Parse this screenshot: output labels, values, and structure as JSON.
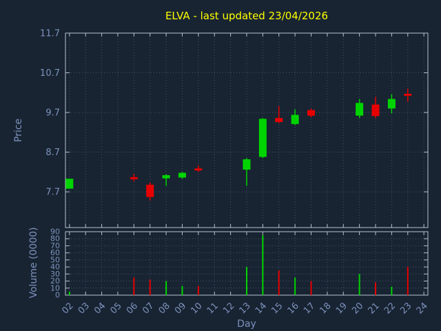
{
  "title": "ELVA - last updated 23/04/2026",
  "symbol": "ELVA",
  "last_updated": "23/04/2026",
  "axes": {
    "price_label": "Price",
    "volume_label": "Volume (0000)",
    "x_label": "Day",
    "price_ticks": [
      "7.7",
      "8.7",
      "9.7",
      "10.7",
      "11.7"
    ],
    "volume_ticks": [
      0,
      10,
      20,
      30,
      40,
      50,
      60,
      70,
      80,
      90
    ],
    "x_ticks": [
      "02",
      "03",
      "04",
      "05",
      "06",
      "07",
      "08",
      "09",
      "10",
      "11",
      "12",
      "13",
      "14",
      "15",
      "16",
      "17",
      "18",
      "19",
      "20",
      "21",
      "22",
      "23",
      "24"
    ]
  },
  "colors": {
    "background": "#182432",
    "title": "#ffff00",
    "text": "#7e93bd",
    "grid": "#45536a",
    "border": "#b9c3cf",
    "up": "#00d400",
    "down": "#e80000"
  },
  "chart_data": {
    "type": "candlestick",
    "title": "ELVA - last updated 23/04/2026",
    "xlabel": "Day",
    "ylabel": "Price",
    "ylabel2": "Volume (0000)",
    "grid": true,
    "legend": false,
    "x_range": [
      2,
      24
    ],
    "price_range": [
      6.8,
      11.7
    ],
    "volume_range": [
      0,
      90
    ],
    "candles": [
      {
        "day": 2,
        "open": 7.78,
        "high": 8.03,
        "low": 7.78,
        "close": 8.03,
        "volume": 5
      },
      {
        "day": 6,
        "open": 8.07,
        "high": 8.15,
        "low": 7.96,
        "close": 8.02,
        "volume": 25
      },
      {
        "day": 7,
        "open": 7.88,
        "high": 7.94,
        "low": 7.48,
        "close": 7.57,
        "volume": 22
      },
      {
        "day": 8,
        "open": 8.04,
        "high": 8.14,
        "low": 7.85,
        "close": 8.12,
        "volume": 20
      },
      {
        "day": 9,
        "open": 8.06,
        "high": 8.2,
        "low": 8.03,
        "close": 8.18,
        "volume": 13
      },
      {
        "day": 10,
        "open": 8.29,
        "high": 8.37,
        "low": 8.2,
        "close": 8.24,
        "volume": 13
      },
      {
        "day": 13,
        "open": 8.26,
        "high": 8.55,
        "low": 7.85,
        "close": 8.52,
        "volume": 40
      },
      {
        "day": 14,
        "open": 8.58,
        "high": 9.56,
        "low": 8.55,
        "close": 9.54,
        "volume": 85
      },
      {
        "day": 15,
        "open": 9.56,
        "high": 9.86,
        "low": 9.43,
        "close": 9.46,
        "volume": 35
      },
      {
        "day": 16,
        "open": 9.41,
        "high": 9.78,
        "low": 9.38,
        "close": 9.64,
        "volume": 25
      },
      {
        "day": 17,
        "open": 9.76,
        "high": 9.8,
        "low": 9.58,
        "close": 9.62,
        "volume": 20
      },
      {
        "day": 20,
        "open": 9.62,
        "high": 10.04,
        "low": 9.56,
        "close": 9.94,
        "volume": 30
      },
      {
        "day": 21,
        "open": 9.9,
        "high": 10.09,
        "low": 9.56,
        "close": 9.61,
        "volume": 18
      },
      {
        "day": 22,
        "open": 9.8,
        "high": 10.16,
        "low": 9.68,
        "close": 10.04,
        "volume": 12
      },
      {
        "day": 23,
        "open": 10.17,
        "high": 10.3,
        "low": 9.97,
        "close": 10.12,
        "volume": 40
      }
    ]
  }
}
